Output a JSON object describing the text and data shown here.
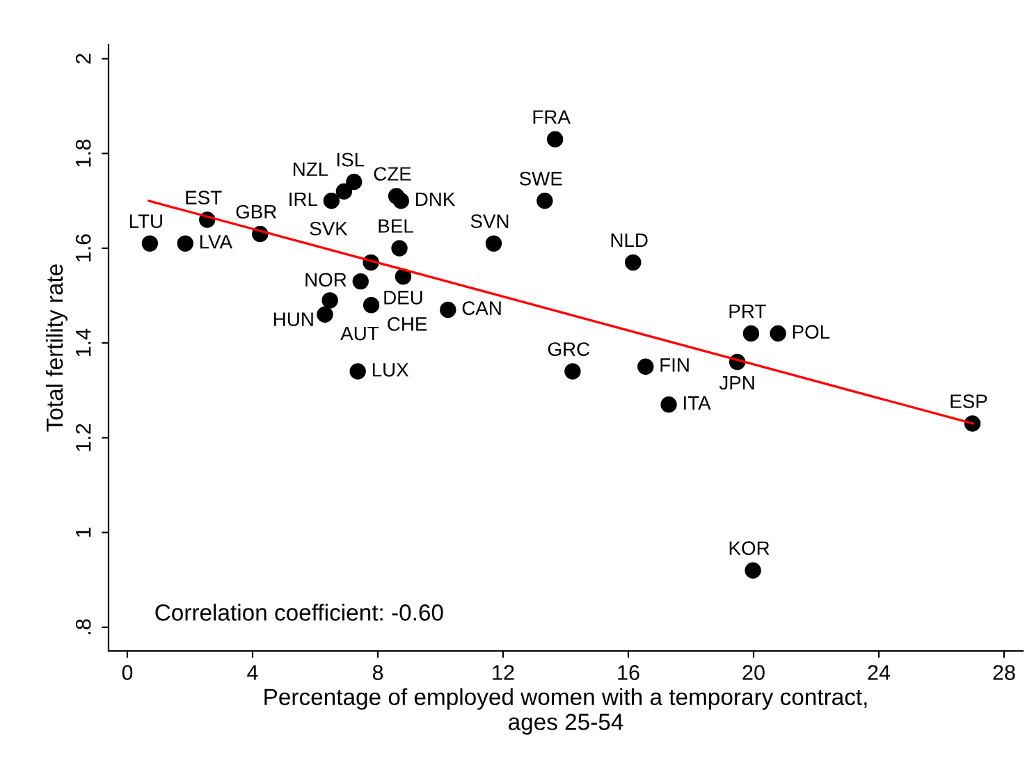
{
  "chart_data": {
    "type": "scatter",
    "xlabel": "Percentage of employed women with a temporary contract,\nages 25-54",
    "ylabel": "Total fertility rate",
    "annotations": [
      "Correlation coefficient: -0.60"
    ],
    "xlim": [
      -0.6,
      28.6
    ],
    "ylim": [
      0.75,
      2.03
    ],
    "xticks": [
      0,
      4,
      8,
      12,
      16,
      20,
      24,
      28
    ],
    "yticks": [
      {
        "value": 0.8,
        "label": ".8"
      },
      1,
      1.2,
      1.4,
      1.6,
      1.8,
      2
    ],
    "grid": false,
    "legend": false,
    "series": [
      {
        "color": "#000000",
        "marker": "circle",
        "x": [
          0.72,
          1.85,
          2.55,
          4.24,
          6.52,
          6.92,
          7.24,
          8.59,
          8.74,
          8.69,
          7.78,
          7.45,
          8.81,
          6.47,
          6.31,
          7.79,
          10.24,
          7.36,
          13.66,
          13.33,
          11.7,
          16.15,
          14.22,
          16.55,
          17.29,
          19.48,
          19.92,
          20.78,
          26.99,
          19.98
        ],
        "values": [
          1.61,
          1.61,
          1.66,
          1.63,
          1.7,
          1.72,
          1.74,
          1.71,
          1.7,
          1.6,
          1.57,
          1.53,
          1.54,
          1.49,
          1.46,
          1.48,
          1.47,
          1.34,
          1.83,
          1.7,
          1.61,
          1.57,
          1.34,
          1.35,
          1.27,
          1.36,
          1.42,
          1.42,
          1.23,
          0.92
        ],
        "value_labels": [
          "LTU",
          "LVA",
          "EST",
          "GBR",
          "IRL",
          "NZL",
          "ISL",
          "CZE",
          "DNK",
          "BEL",
          "SVK",
          "NOR",
          "DEU",
          "HUN",
          "AUT",
          "CHE",
          "CAN",
          "LUX",
          "FRA",
          "SWE",
          "SVN",
          "NLD",
          "GRC",
          "FIN",
          "ITA",
          "JPN",
          "PRT",
          "POL",
          "ESP",
          "KOR"
        ]
      },
      {
        "type": "line",
        "color": "#ff0000",
        "line_style": "solid",
        "marker": "none",
        "x": [
          0.69,
          27.0
        ],
        "values": [
          1.7,
          1.23
        ]
      }
    ]
  }
}
